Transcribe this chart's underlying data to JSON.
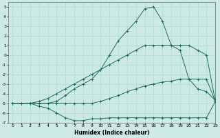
{
  "background_color": "#cce9e4",
  "grid_color": "#b0d8d0",
  "line_color": "#1a6b5e",
  "xlabel": "Humidex (Indice chaleur)",
  "xlim": [
    -0.5,
    23
  ],
  "ylim": [
    -7,
    5.5
  ],
  "xticks": [
    0,
    1,
    2,
    3,
    4,
    5,
    6,
    7,
    8,
    9,
    10,
    11,
    12,
    13,
    14,
    15,
    16,
    17,
    18,
    19,
    20,
    21,
    22,
    23
  ],
  "yticks": [
    -7,
    -6,
    -5,
    -4,
    -3,
    -2,
    -1,
    0,
    1,
    2,
    3,
    4,
    5
  ],
  "series": [
    {
      "x": [
        0,
        1,
        2,
        3,
        4,
        5,
        6,
        7,
        8,
        9,
        10,
        11,
        12,
        13,
        14,
        15,
        16,
        17,
        18,
        19,
        20,
        21,
        22,
        23
      ],
      "y": [
        -5,
        -5,
        -5,
        -5.3,
        -5.5,
        -6,
        -6.5,
        -6.8,
        -6.8,
        -6.6,
        -6.6,
        -6.5,
        -6.5,
        -6.5,
        -6.5,
        -6.5,
        -6.5,
        -6.5,
        -6.5,
        -6.5,
        -6.5,
        -6.5,
        -6.5,
        -4.8
      ]
    },
    {
      "x": [
        0,
        1,
        2,
        3,
        4,
        5,
        6,
        7,
        8,
        9,
        10,
        11,
        12,
        13,
        14,
        15,
        16,
        17,
        18,
        19,
        20,
        21,
        22,
        23
      ],
      "y": [
        -5,
        -5,
        -5,
        -5,
        -5,
        -5,
        -5,
        -5,
        -5,
        -5,
        -4.8,
        -4.5,
        -4.2,
        -3.8,
        -3.5,
        -3.2,
        -3,
        -2.8,
        -2.7,
        -2.5,
        -2.5,
        -2.5,
        -2.5,
        -4.8
      ]
    },
    {
      "x": [
        0,
        1,
        2,
        3,
        4,
        5,
        6,
        7,
        8,
        9,
        10,
        11,
        12,
        13,
        14,
        15,
        16,
        17,
        18,
        19,
        20,
        21,
        22,
        23
      ],
      "y": [
        -5,
        -5,
        -5,
        -4.8,
        -4.5,
        -4,
        -3.5,
        -3,
        -2.5,
        -2,
        -1.5,
        -1,
        -0.5,
        0,
        0.5,
        1,
        1,
        1,
        1,
        1,
        1,
        0.5,
        0,
        -4.8
      ]
    },
    {
      "x": [
        0,
        2,
        3,
        4,
        5,
        6,
        7,
        8,
        9,
        10,
        11,
        12,
        13,
        14,
        15,
        16,
        17,
        18,
        19,
        20,
        21,
        22,
        23
      ],
      "y": [
        -5,
        -5,
        -5,
        -5,
        -4.8,
        -4.2,
        -3.5,
        -3,
        -2.5,
        -1.5,
        0,
        1.5,
        2.5,
        3.5,
        4.8,
        5,
        3.5,
        1,
        0.5,
        -2.5,
        -3.5,
        -3.8,
        -4.7
      ]
    }
  ]
}
